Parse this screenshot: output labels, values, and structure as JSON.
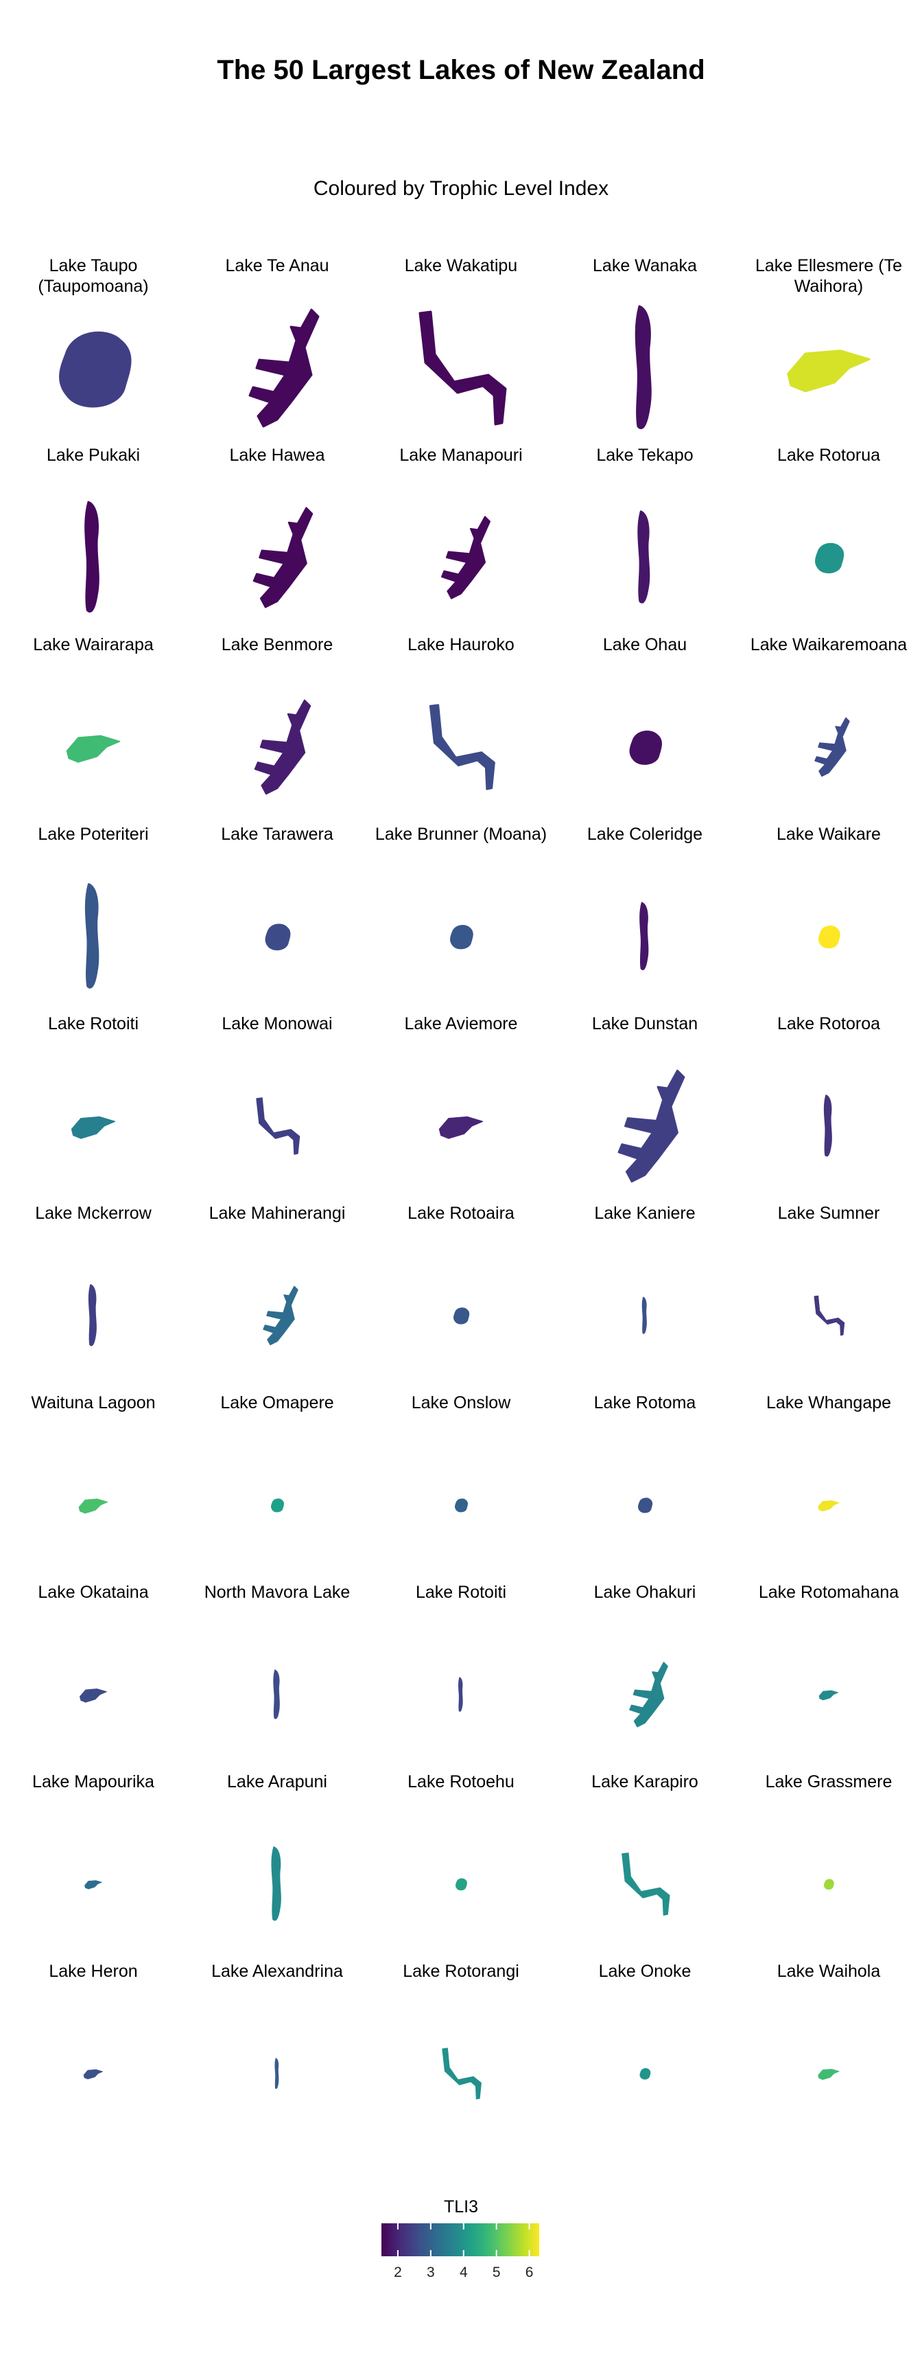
{
  "chart_data": {
    "type": "choropleth-small-multiples",
    "title": "The 50 Largest Lakes of New Zealand",
    "subtitle": "Coloured by Trophic Level Index",
    "legend": {
      "title": "TLI3",
      "ticks": [
        2,
        3,
        4,
        5,
        6
      ],
      "range": [
        1.5,
        6.3
      ],
      "placement": "bottom",
      "colormap": "viridis"
    },
    "lakes": [
      {
        "name": "Lake Taupo (Taupomoana)",
        "tli3": 2.4,
        "shape": "blob",
        "size": 1.0
      },
      {
        "name": "Lake Te Anau",
        "tli3": 1.6,
        "shape": "branched",
        "size": 1.0
      },
      {
        "name": "Lake Wakatipu",
        "tli3": 1.6,
        "shape": "zigzag",
        "size": 1.0
      },
      {
        "name": "Lake Wanaka",
        "tli3": 1.7,
        "shape": "long",
        "size": 1.0
      },
      {
        "name": "Lake Ellesmere (Te Waihora)",
        "tli3": 6.0,
        "shape": "wedge",
        "size": 0.85
      },
      {
        "name": "Lake Pukaki",
        "tli3": 1.6,
        "shape": "long",
        "size": 0.9
      },
      {
        "name": "Lake Hawea",
        "tli3": 1.6,
        "shape": "branched",
        "size": 0.85
      },
      {
        "name": "Lake Manapouri",
        "tli3": 1.6,
        "shape": "branched",
        "size": 0.7
      },
      {
        "name": "Lake Tekapo",
        "tli3": 1.8,
        "shape": "long",
        "size": 0.75
      },
      {
        "name": "Lake Rotorua",
        "tli3": 4.0,
        "shape": "blob",
        "size": 0.4
      },
      {
        "name": "Lake Wairarapa",
        "tli3": 4.8,
        "shape": "wedge",
        "size": 0.55
      },
      {
        "name": "Lake Benmore",
        "tli3": 1.9,
        "shape": "branched",
        "size": 0.8
      },
      {
        "name": "Lake Hauroko",
        "tli3": 2.6,
        "shape": "zigzag",
        "size": 0.75
      },
      {
        "name": "Lake Ohau",
        "tli3": 1.7,
        "shape": "blob",
        "size": 0.45
      },
      {
        "name": "Lake Waikaremoana",
        "tli3": 2.6,
        "shape": "branched",
        "size": 0.5
      },
      {
        "name": "Lake Poteriteri",
        "tli3": 2.8,
        "shape": "long",
        "size": 0.85
      },
      {
        "name": "Lake Tarawera",
        "tli3": 2.6,
        "shape": "blob",
        "size": 0.35
      },
      {
        "name": "Lake Brunner (Moana)",
        "tli3": 2.8,
        "shape": "blob",
        "size": 0.32
      },
      {
        "name": "Lake Coleridge",
        "tli3": 1.8,
        "shape": "long",
        "size": 0.55
      },
      {
        "name": "Lake Waikare",
        "tli3": 6.3,
        "shape": "blob",
        "size": 0.3
      },
      {
        "name": "Lake Rotoiti",
        "tli3": 3.6,
        "shape": "wedge",
        "size": 0.45
      },
      {
        "name": "Lake Monowai",
        "tli3": 2.4,
        "shape": "zigzag",
        "size": 0.5
      },
      {
        "name": "Lake Aviemore",
        "tli3": 2.0,
        "shape": "wedge",
        "size": 0.45
      },
      {
        "name": "Lake Dunstan",
        "tli3": 2.4,
        "shape": "branched",
        "size": 0.95
      },
      {
        "name": "Lake Rotoroa",
        "tli3": 2.2,
        "shape": "long",
        "size": 0.5
      },
      {
        "name": "Lake Mckerrow",
        "tli3": 2.4,
        "shape": "long",
        "size": 0.5
      },
      {
        "name": "Lake Mahinerangi",
        "tli3": 3.2,
        "shape": "branched",
        "size": 0.5
      },
      {
        "name": "Lake Rotoaira",
        "tli3": 2.8,
        "shape": "blob",
        "size": 0.22
      },
      {
        "name": "Lake Kaniere",
        "tli3": 2.7,
        "shape": "long",
        "size": 0.3
      },
      {
        "name": "Lake Sumner",
        "tli3": 2.3,
        "shape": "zigzag",
        "size": 0.35
      },
      {
        "name": "Waituna Lagoon",
        "tli3": 4.9,
        "shape": "wedge",
        "size": 0.3
      },
      {
        "name": "Lake Omapere",
        "tli3": 4.2,
        "shape": "blob",
        "size": 0.18
      },
      {
        "name": "Lake Onslow",
        "tli3": 3.0,
        "shape": "blob",
        "size": 0.18
      },
      {
        "name": "Lake Rotoma",
        "tli3": 2.7,
        "shape": "blob",
        "size": 0.2
      },
      {
        "name": "Lake Whangape",
        "tli3": 6.2,
        "shape": "wedge",
        "size": 0.22
      },
      {
        "name": "Lake Okataina",
        "tli3": 2.6,
        "shape": "wedge",
        "size": 0.28
      },
      {
        "name": "North Mavora Lake",
        "tli3": 2.6,
        "shape": "long",
        "size": 0.4
      },
      {
        "name": "Lake Rotoiti",
        "tli3": 2.5,
        "shape": "long",
        "size": 0.28
      },
      {
        "name": "Lake Ohakuri",
        "tli3": 3.7,
        "shape": "branched",
        "size": 0.55
      },
      {
        "name": "Lake Rotomahana",
        "tli3": 3.8,
        "shape": "wedge",
        "size": 0.2
      },
      {
        "name": "Lake Mapourika",
        "tli3": 3.2,
        "shape": "wedge",
        "size": 0.18
      },
      {
        "name": "Lake Arapuni",
        "tli3": 3.8,
        "shape": "long",
        "size": 0.6
      },
      {
        "name": "Lake Rotoehu",
        "tli3": 4.3,
        "shape": "blob",
        "size": 0.16
      },
      {
        "name": "Lake Karapiro",
        "tli3": 3.9,
        "shape": "zigzag",
        "size": 0.55
      },
      {
        "name": "Lake Grassmere",
        "tli3": 5.6,
        "shape": "blob",
        "size": 0.14
      },
      {
        "name": "Lake Heron",
        "tli3": 2.7,
        "shape": "wedge",
        "size": 0.2
      },
      {
        "name": "Lake Alexandrina",
        "tli3": 2.9,
        "shape": "long",
        "size": 0.25
      },
      {
        "name": "Lake Rotorangi",
        "tli3": 3.9,
        "shape": "zigzag",
        "size": 0.45
      },
      {
        "name": "Lake Onoke",
        "tli3": 4.0,
        "shape": "blob",
        "size": 0.15
      },
      {
        "name": "Lake Waihola",
        "tli3": 4.8,
        "shape": "wedge",
        "size": 0.22
      }
    ]
  }
}
